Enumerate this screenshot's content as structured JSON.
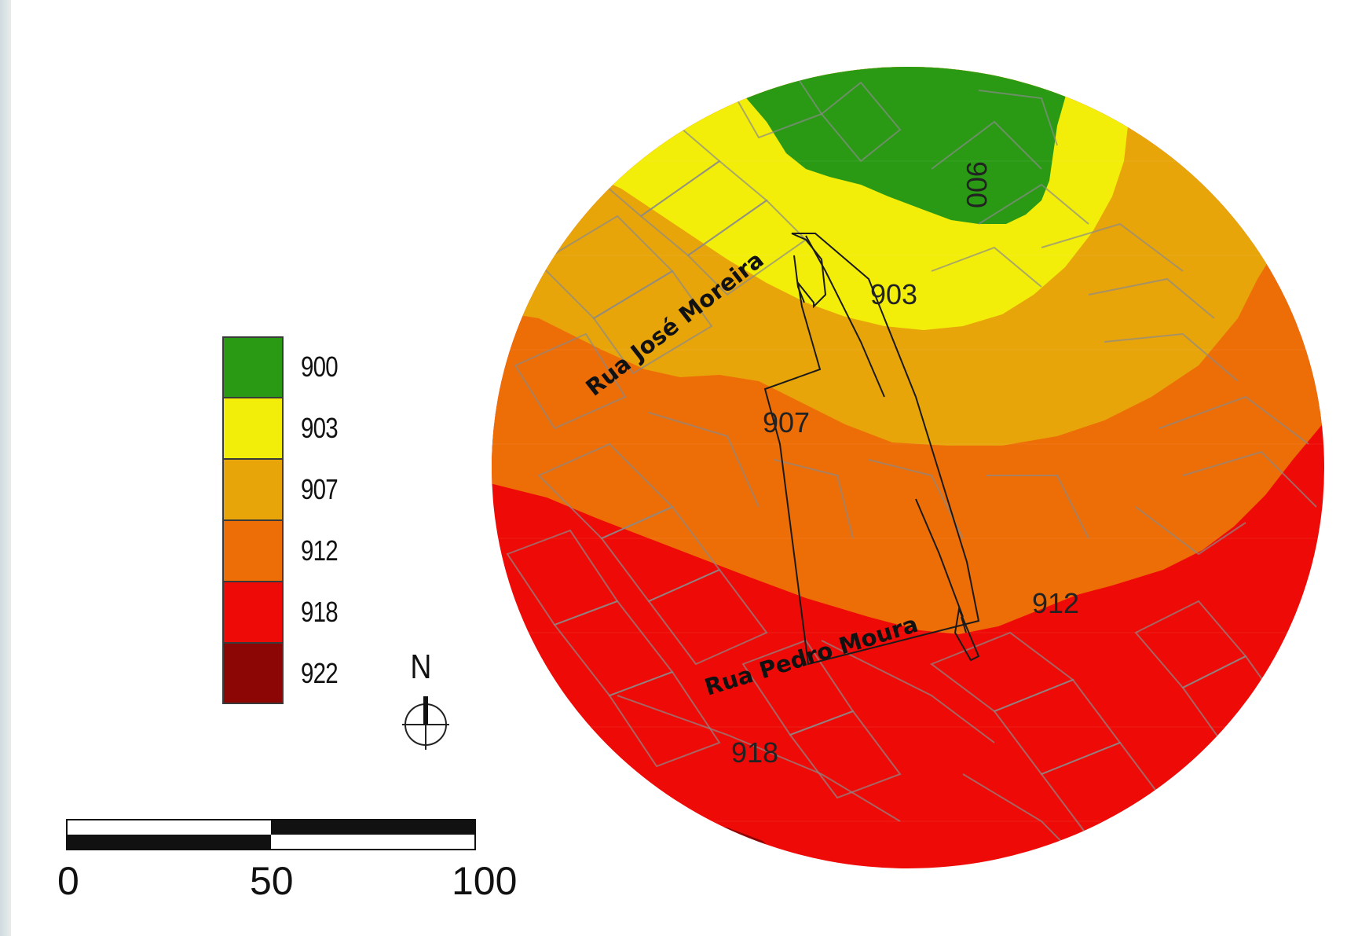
{
  "legend": {
    "items": [
      {
        "label": "900",
        "color": "#2a9a14"
      },
      {
        "label": "903",
        "color": "#f2ee0a"
      },
      {
        "label": "907",
        "color": "#e8a50a"
      },
      {
        "label": "912",
        "color": "#ed6d06"
      },
      {
        "label": "918",
        "color": "#ee0a06"
      },
      {
        "label": "922",
        "color": "#8c0606"
      }
    ]
  },
  "north_arrow": {
    "label": "N"
  },
  "scale_bar": {
    "labels": [
      "0",
      "50",
      "100"
    ]
  },
  "map": {
    "streets": [
      "Rua José Moreira",
      "Rua Pedro Moura"
    ],
    "contour_labels": [
      "900",
      "903",
      "907",
      "912",
      "918"
    ]
  }
}
